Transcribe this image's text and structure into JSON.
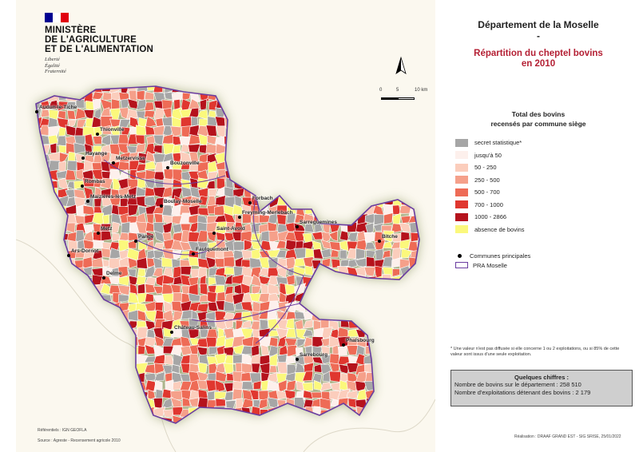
{
  "ministry": {
    "lines": [
      "MINISTÈRE",
      "DE L'AGRICULTURE",
      "ET DE L'ALIMENTATION"
    ],
    "motto": [
      "Liberté",
      "Égalité",
      "Fraternité"
    ]
  },
  "title": {
    "line1": "Département de la Moselle",
    "line2": "-",
    "subtitle1": "Répartition du cheptel bovins",
    "subtitle2": "en 2010"
  },
  "scale": {
    "labels": [
      "0",
      "5",
      "10 km"
    ]
  },
  "legend": {
    "title1": "Total des bovins",
    "title2": "recensés par commune siège",
    "classes": [
      {
        "label": "secret statistique*",
        "color": "#a6a6a6"
      },
      {
        "label": "jusqu'à 50",
        "color": "#fdf0ec"
      },
      {
        "label": "50 - 250",
        "color": "#fbcdbc"
      },
      {
        "label": "250 - 500",
        "color": "#f5a08a"
      },
      {
        "label": "500 - 700",
        "color": "#ee6b56"
      },
      {
        "label": "700 - 1000",
        "color": "#e0372f"
      },
      {
        "label": "1000 - 2866",
        "color": "#b5121c"
      },
      {
        "label": "absence de bovins",
        "color": "#fbf87c"
      }
    ],
    "communes": "Communes principales",
    "pra": "PRA Moselle"
  },
  "cities": [
    "Audun-le-Tiche",
    "Thionville",
    "Hayange",
    "Metzervisse",
    "Bouzonville",
    "Rombas",
    "Maizières-lès-Metz",
    "Boulay-Moselle",
    "Metz",
    "Pange",
    "Ars-Dornot",
    "Faulquemont",
    "Saint-Avold",
    "Forbach",
    "Freyming-Merlebach",
    "Sarreguemines",
    "Bitche",
    "Delme",
    "Château-Salins",
    "Sarrebourg",
    "Phalsbourg"
  ],
  "note": "* Une valeur n'est pas diffusée si elle concerne 1 ou 2 exploitations, ou si 85% de cette valeur sont issus d'une seule exploitation.",
  "figures": {
    "title": "Quelques chiffres :",
    "line1": "Nombre de bovins sur le département : 258 510",
    "line2": "Nombre d'exploitations détenant des bovins : 2 179"
  },
  "credits": {
    "referentiels": "Référentiels : IGN GEOFLA",
    "source": "Source : Agreste - Recensement agricole 2010",
    "realisation": "Réalisation : DRAAF GRAND EST - SIG SRISE, 25/01/2022"
  },
  "colors": {
    "flag_blue": "#000091",
    "flag_red": "#e1000f",
    "pra_border": "#6a3ca0",
    "subtitle": "#b42034"
  }
}
